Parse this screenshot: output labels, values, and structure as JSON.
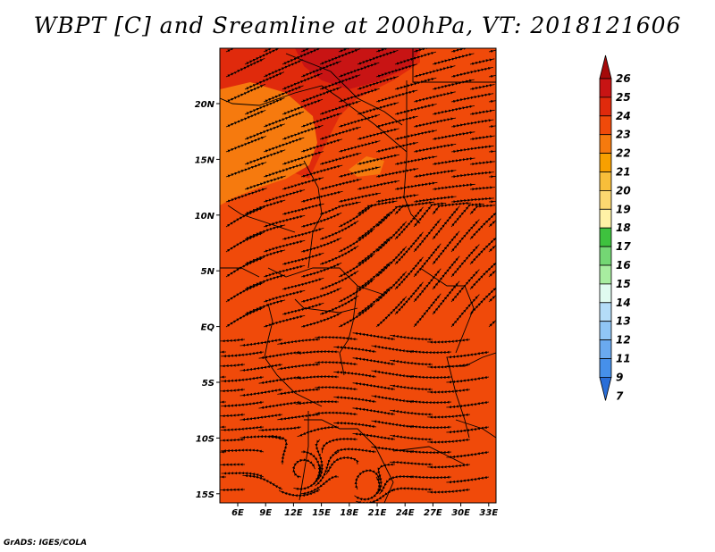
{
  "title": "WBPT [C] and Sreamline at 200hPa, VT: 2018121606",
  "credit": "GrADS: IGES/COLA",
  "map": {
    "field_units": "C",
    "field_range_shown": [
      22,
      26
    ],
    "dominant_value_band": "23-24",
    "lon_range": [
      4,
      34
    ],
    "lat_range": [
      -16,
      24
    ],
    "lon_ticks": [
      "6E",
      "9E",
      "12E",
      "15E",
      "18E",
      "21E",
      "24E",
      "27E",
      "30E",
      "33E"
    ],
    "lat_ticks": [
      "20N",
      "15N",
      "10N",
      "5N",
      "EQ",
      "5S",
      "10S",
      "15S"
    ]
  },
  "colorbar": {
    "labels": [
      "26",
      "25",
      "24",
      "23",
      "22",
      "21",
      "20",
      "19",
      "18",
      "17",
      "16",
      "15",
      "14",
      "13",
      "12",
      "11",
      "9",
      "7"
    ],
    "colors": [
      "#a50a0a",
      "#c81414",
      "#e02a0c",
      "#f04a0a",
      "#f67a0e",
      "#f8a000",
      "#f8be3a",
      "#fcd870",
      "#fff2a6",
      "#3ec23e",
      "#74d774",
      "#a8eda0",
      "#e0fbf0",
      "#b4dcf8",
      "#90c6f6",
      "#6aaaf0",
      "#4690ea",
      "#2a6ed8"
    ]
  }
}
